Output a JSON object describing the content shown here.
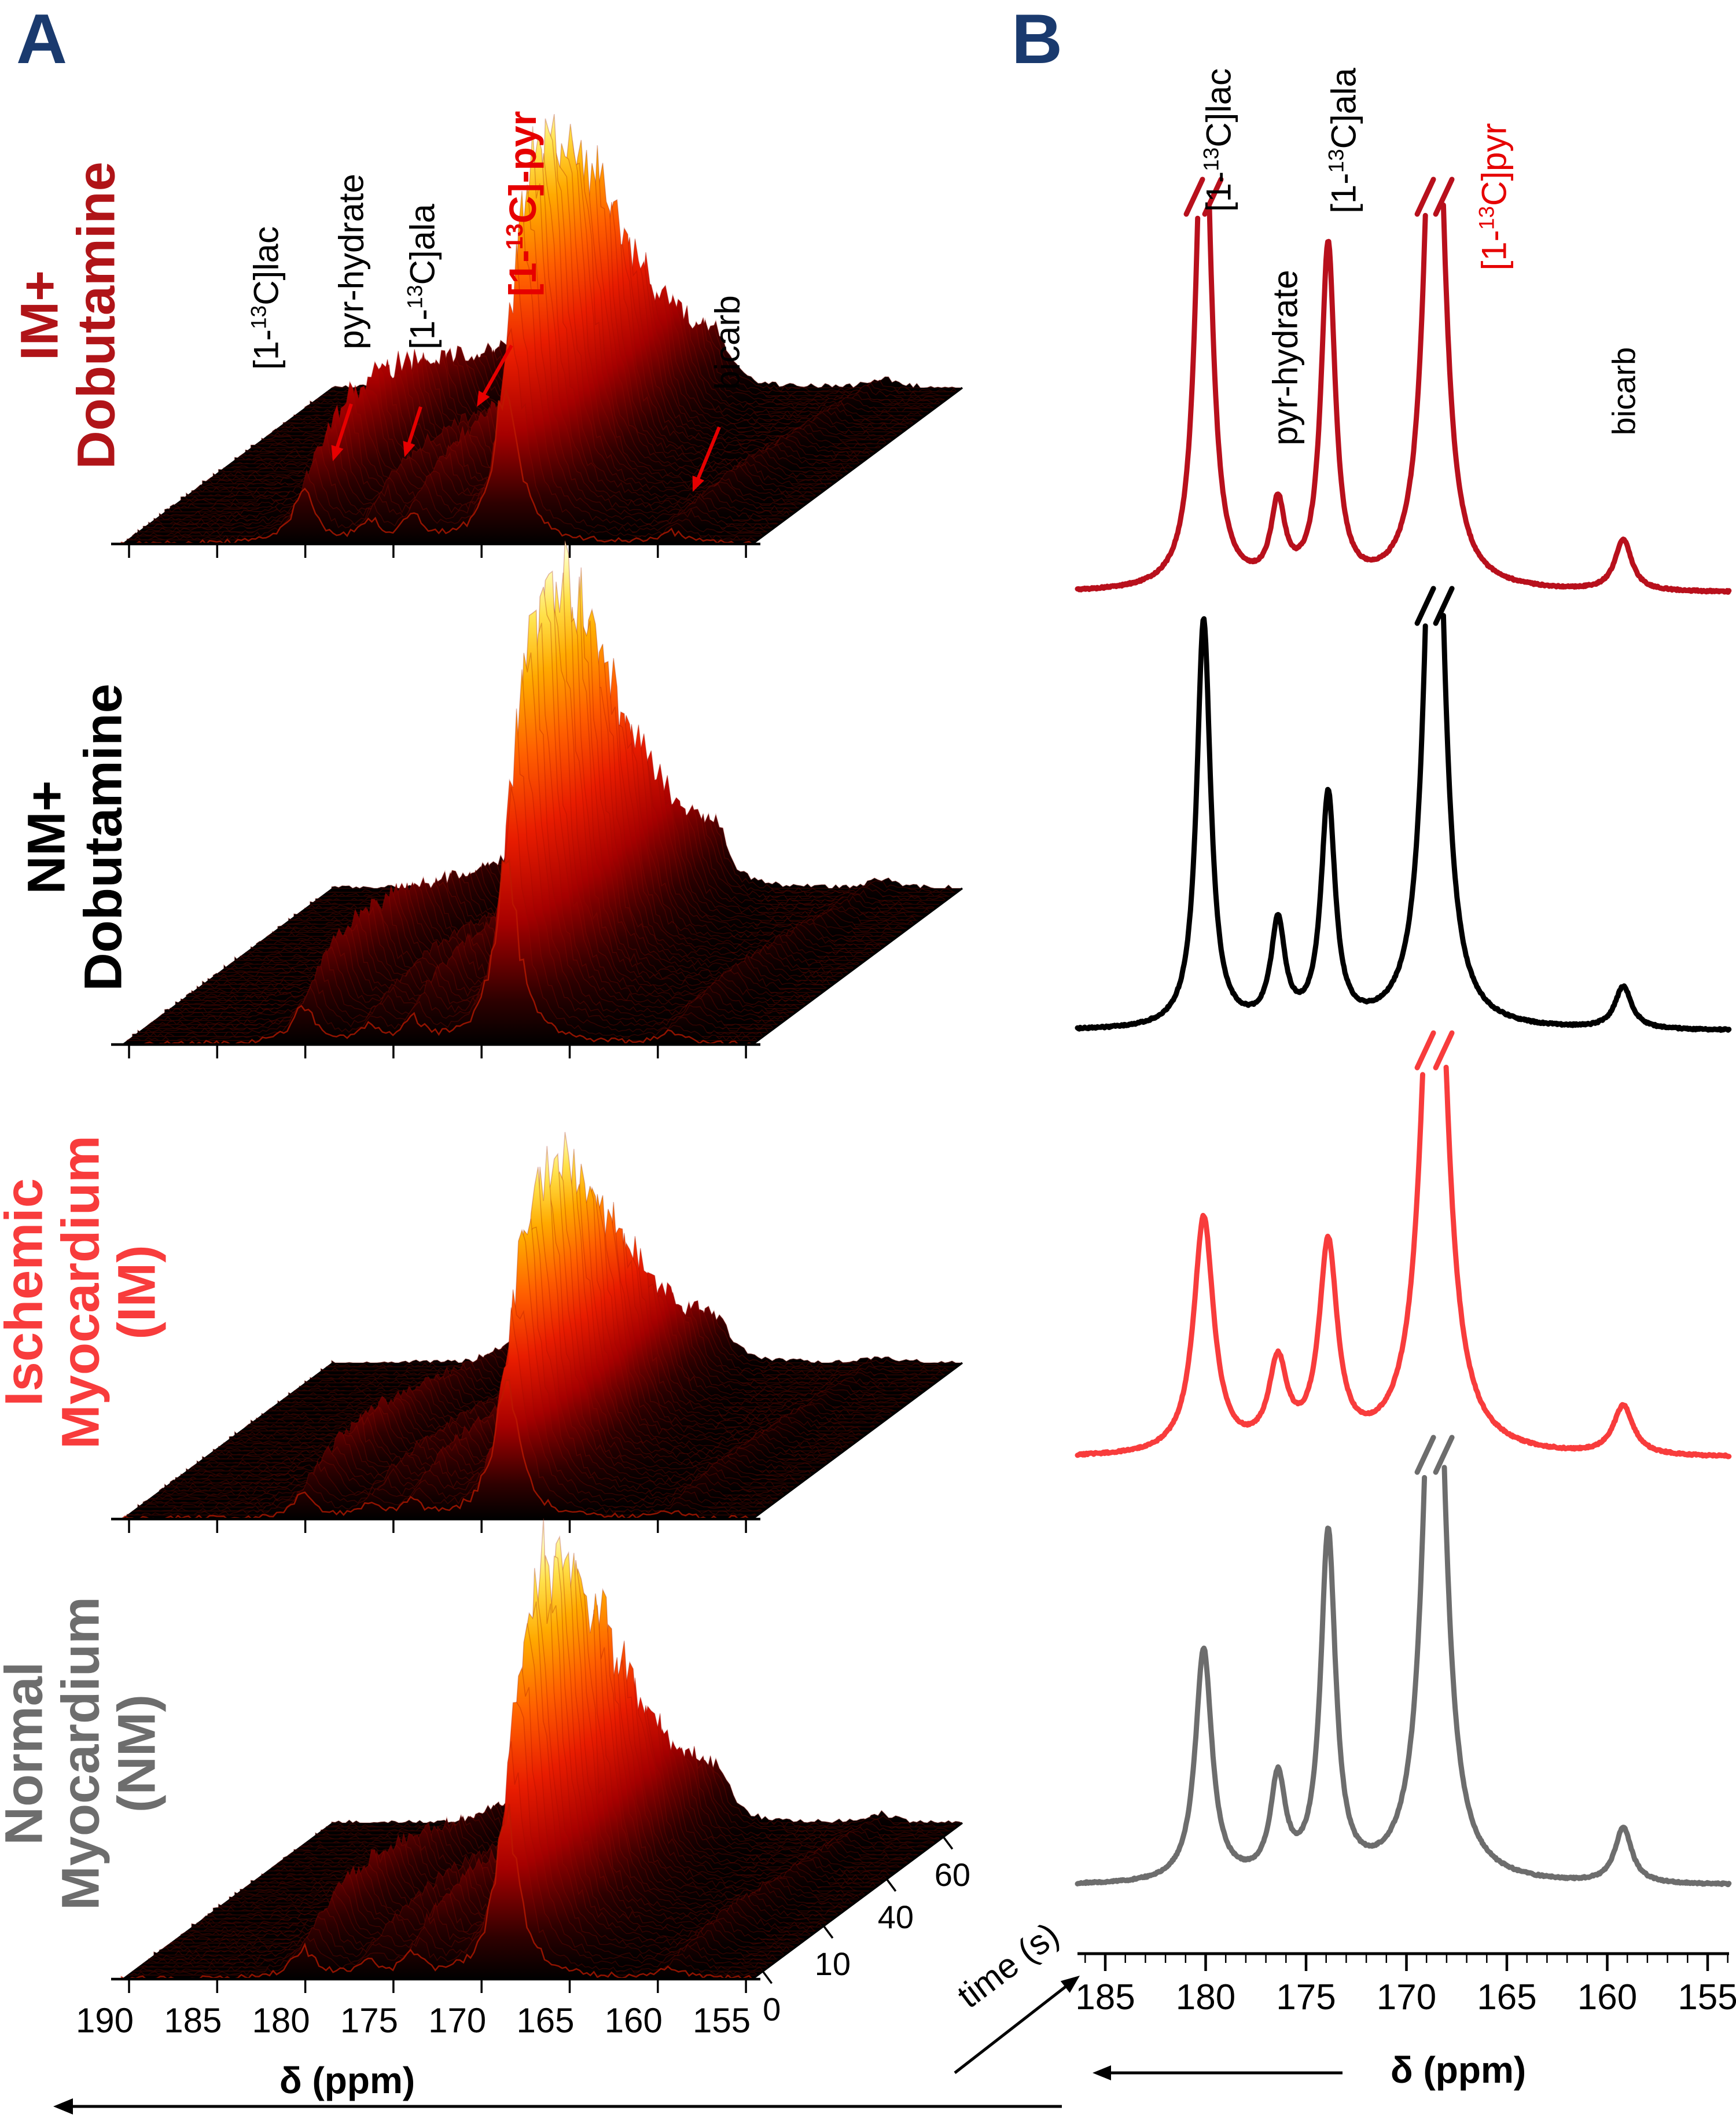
{
  "labels": {
    "panel_a": "A",
    "panel_b": "B",
    "panel_a_peaks": {
      "lac": {
        "parts": [
          "[1-",
          "13",
          "C]lac"
        ]
      },
      "pyr_hydrate": {
        "parts": [
          "pyr-hydrate"
        ]
      },
      "ala": {
        "parts": [
          "[1-",
          "13",
          "C]ala"
        ]
      },
      "pyr": {
        "parts": [
          "[1-",
          "13",
          "C]-pyr"
        ]
      },
      "bicarb": {
        "parts": [
          "bicarb"
        ]
      }
    },
    "panel_b_peaks": {
      "lac": {
        "parts": [
          "[1-",
          "13",
          "C]lac"
        ]
      },
      "pyr_hydrate": {
        "parts": [
          "pyr-hydrate"
        ]
      },
      "ala": {
        "parts": [
          "[1-",
          "13",
          "C]ala"
        ]
      },
      "pyr": {
        "parts": [
          "[1-",
          "13",
          "C]pyr"
        ]
      },
      "bicarb": {
        "parts": [
          "bicarb"
        ]
      }
    }
  },
  "style": {
    "panel_letter_color": "#1a3a6e",
    "red_accent": "#e60000",
    "axis_color": "#000000",
    "flame_stops": [
      [
        0,
        "#000000"
      ],
      [
        0.1,
        "#2e0000"
      ],
      [
        0.27,
        "#a60000"
      ],
      [
        0.45,
        "#e81c00"
      ],
      [
        0.62,
        "#ff5f00"
      ],
      [
        0.78,
        "#ffaa00"
      ],
      [
        0.9,
        "#ffe14a"
      ],
      [
        1,
        "#ffffc4"
      ]
    ]
  },
  "chart_data": [
    {
      "id": "panel_a",
      "type": "area",
      "subtype": "3d-waterfall-13C-spectra-vs-time",
      "xlabel": "δ (ppm)",
      "x_ticks": [
        190,
        185,
        180,
        175,
        170,
        165,
        160,
        155
      ],
      "x_reversed": true,
      "time_label": "time (s)",
      "time_ticks": [
        0,
        10,
        40,
        60
      ],
      "time_range_s": [
        0,
        60
      ],
      "peaks": [
        {
          "id": "lac",
          "name": "[1-13C]lac",
          "ppm": 180.1,
          "width_ppm": 0.8
        },
        {
          "id": "pyr_hydrate",
          "name": "pyr-hydrate",
          "ppm": 176.4,
          "width_ppm": 0.65
        },
        {
          "id": "ala",
          "name": "[1-13C]ala",
          "ppm": 173.9,
          "width_ppm": 0.65
        },
        {
          "id": "pyr",
          "name": "[1-13C]pyr",
          "ppm": 168.6,
          "width_ppm": 0.85
        },
        {
          "id": "bicarb",
          "name": "bicarb",
          "ppm": 159.2,
          "width_ppm": 0.8
        }
      ],
      "series": [
        {
          "id": "im-dobutamine",
          "name": "IM+ Dobutamine",
          "name_lines": [
            "IM+",
            "Dobutamine"
          ],
          "color": "#b01418",
          "relative_max_signal": 0.91,
          "pyr_time_to_peak_s": 12,
          "peaks": {
            "lac": 0.3,
            "pyr_hydrate": 0.12,
            "ala": 0.16,
            "pyr": 1.0,
            "bicarb": 0.06
          }
        },
        {
          "id": "nm-dobutamine",
          "name": "NM+ Dobutamine",
          "name_lines": [
            "NM+",
            "Dobutamine"
          ],
          "color": "#000000",
          "relative_max_signal": 1.0,
          "pyr_time_to_peak_s": 12,
          "peaks": {
            "lac": 0.2,
            "pyr_hydrate": 0.09,
            "ala": 0.12,
            "pyr": 1.0,
            "bicarb": 0.06
          }
        },
        {
          "id": "ischemic-myocardium",
          "name": "Ischemic Myocardium (IM)",
          "name_lines": [
            "Ischemic",
            "Myocardium",
            "(IM)"
          ],
          "color": "#f83c3c",
          "relative_max_signal": 0.77,
          "pyr_time_to_peak_s": 12,
          "peaks": {
            "lac": 0.17,
            "pyr_hydrate": 0.09,
            "ala": 0.12,
            "pyr": 1.0,
            "bicarb": 0.05
          }
        },
        {
          "id": "normal-myocardium",
          "name": "Normal Myocardium (NM)",
          "name_lines": [
            "Normal",
            "Myocardium",
            "(NM)"
          ],
          "color": "#6d6d6d",
          "relative_max_signal": 0.92,
          "pyr_time_to_peak_s": 12,
          "peaks": {
            "lac": 0.17,
            "pyr_hydrate": 0.1,
            "ala": 0.14,
            "pyr": 1.0,
            "bicarb": 0.06
          }
        }
      ]
    },
    {
      "id": "panel_b",
      "type": "line",
      "subtype": "summed-13C-spectra",
      "xlabel": "δ (ppm)",
      "x_ticks": [
        185,
        180,
        175,
        170,
        165,
        160,
        155
      ],
      "x_reversed": true,
      "series": [
        {
          "id": "im-dobutamine",
          "name": "IM+ Dobutamine",
          "color": "#b8101c",
          "peaks": [
            {
              "metabolite": "[1-13C]lac",
              "ppm": 180.1,
              "rel_amp": 1.35,
              "width_ppm": 0.45,
              "clipped": true
            },
            {
              "metabolite": "pyr-hydrate",
              "ppm": 176.4,
              "rel_amp": 0.2,
              "width_ppm": 0.42
            },
            {
              "metabolite": "[1-13C]ala",
              "ppm": 173.9,
              "rel_amp": 0.86,
              "width_ppm": 0.42
            },
            {
              "metabolite": "[1-13C]pyr",
              "ppm": 168.6,
              "rel_amp": 1.6,
              "width_ppm": 0.55,
              "clipped": true
            },
            {
              "metabolite": "bicarb",
              "ppm": 159.2,
              "rel_amp": 0.13,
              "width_ppm": 0.5
            }
          ]
        },
        {
          "id": "nm-dobutamine",
          "name": "NM+ Dobutamine",
          "color": "#000000",
          "peaks": [
            {
              "metabolite": "[1-13C]lac",
              "ppm": 180.1,
              "rel_amp": 0.96,
              "width_ppm": 0.42
            },
            {
              "metabolite": "pyr-hydrate",
              "ppm": 176.4,
              "rel_amp": 0.24,
              "width_ppm": 0.42
            },
            {
              "metabolite": "[1-13C]ala",
              "ppm": 173.9,
              "rel_amp": 0.54,
              "width_ppm": 0.42
            },
            {
              "metabolite": "[1-13C]pyr",
              "ppm": 168.6,
              "rel_amp": 1.6,
              "width_ppm": 0.55,
              "clipped": true
            },
            {
              "metabolite": "bicarb",
              "ppm": 159.2,
              "rel_amp": 0.1,
              "width_ppm": 0.5
            }
          ]
        },
        {
          "id": "ischemic-myocardium",
          "name": "Ischemic Myocardium (IM)",
          "color": "#f83c3c",
          "peaks": [
            {
              "metabolite": "[1-13C]lac",
              "ppm": 180.1,
              "rel_amp": 0.58,
              "width_ppm": 0.6
            },
            {
              "metabolite": "pyr-hydrate",
              "ppm": 176.4,
              "rel_amp": 0.21,
              "width_ppm": 0.55
            },
            {
              "metabolite": "[1-13C]ala",
              "ppm": 173.9,
              "rel_amp": 0.5,
              "width_ppm": 0.55
            },
            {
              "metabolite": "[1-13C]pyr",
              "ppm": 168.6,
              "rel_amp": 1.6,
              "width_ppm": 0.7,
              "clipped": true
            },
            {
              "metabolite": "bicarb",
              "ppm": 159.2,
              "rel_amp": 0.12,
              "width_ppm": 0.6
            }
          ]
        },
        {
          "id": "normal-myocardium",
          "name": "Normal Myocardium (NM)",
          "color": "#6d6d6d",
          "peaks": [
            {
              "metabolite": "[1-13C]lac",
              "ppm": 180.1,
              "rel_amp": 0.54,
              "width_ppm": 0.5
            },
            {
              "metabolite": "pyr-hydrate",
              "ppm": 176.4,
              "rel_amp": 0.23,
              "width_ppm": 0.45
            },
            {
              "metabolite": "[1-13C]ala",
              "ppm": 173.9,
              "rel_amp": 0.8,
              "width_ppm": 0.45
            },
            {
              "metabolite": "[1-13C]pyr",
              "ppm": 168.6,
              "rel_amp": 1.6,
              "width_ppm": 0.6,
              "clipped": true
            },
            {
              "metabolite": "bicarb",
              "ppm": 159.2,
              "rel_amp": 0.13,
              "width_ppm": 0.5
            }
          ]
        }
      ]
    }
  ]
}
